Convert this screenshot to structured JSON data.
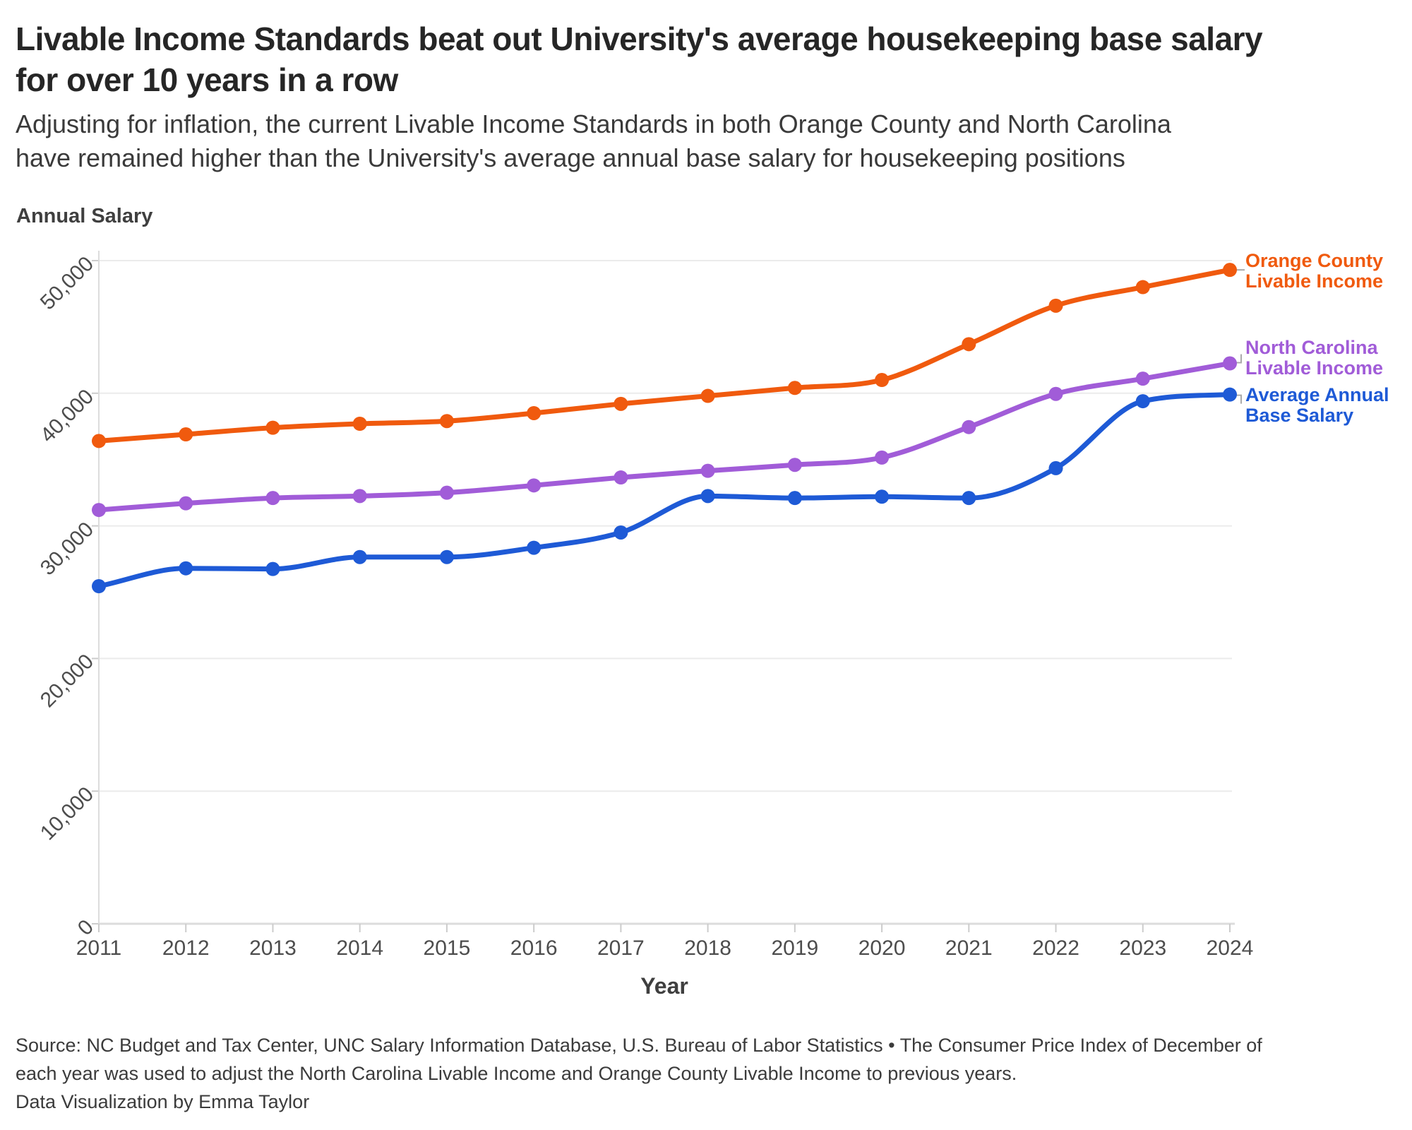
{
  "header": {
    "title_lines": [
      "Livable Income Standards beat out University's average housekeeping base salary",
      "for over 10 years in a row"
    ],
    "subtitle_lines": [
      "Adjusting for inflation, the current Livable Income Standards in both Orange County and North Carolina",
      "have remained higher than the University's average annual base salary for housekeeping positions"
    ]
  },
  "chart_data": {
    "type": "line",
    "title": "Livable Income Standards beat out University's average housekeeping base salary for over 10 years in a row",
    "ylabel": "Annual Salary",
    "xlabel": "Year",
    "ylim": [
      0,
      50000
    ],
    "grid": "horizontal",
    "legend_position": "right-of-line-ends",
    "x": [
      2011,
      2012,
      2013,
      2014,
      2015,
      2016,
      2017,
      2018,
      2019,
      2020,
      2021,
      2022,
      2023,
      2024
    ],
    "yticks": [
      {
        "value": 0,
        "label": "0"
      },
      {
        "value": 10000,
        "label": "10,000"
      },
      {
        "value": 20000,
        "label": "20,000"
      },
      {
        "value": 30000,
        "label": "30,000"
      },
      {
        "value": 40000,
        "label": "40,000"
      },
      {
        "value": 50000,
        "label": "50,000"
      }
    ],
    "series": [
      {
        "name": "Orange County Livable Income",
        "label_lines": [
          "Orange County",
          "Livable Income"
        ],
        "color": "#F05A0E",
        "values": [
          36400,
          36900,
          37400,
          37700,
          37900,
          38500,
          39200,
          39800,
          40400,
          41000,
          43700,
          46600,
          48000,
          49300
        ]
      },
      {
        "name": "North Carolina Livable Income",
        "label_lines": [
          "North Carolina",
          "Livable Income"
        ],
        "color": "#A15CD8",
        "values": [
          31200,
          31700,
          32100,
          32250,
          32500,
          33050,
          33650,
          34150,
          34600,
          35150,
          37450,
          39950,
          41100,
          42250
        ]
      },
      {
        "name": "Average Annual Base Salary",
        "label_lines": [
          "Average Annual",
          "Base Salary"
        ],
        "color": "#1E5AD6",
        "values": [
          25450,
          26800,
          26750,
          27650,
          27650,
          28350,
          29500,
          32250,
          32100,
          32200,
          32100,
          34350,
          39400,
          39900
        ]
      }
    ]
  },
  "footer": {
    "lines": [
      "Source: NC Budget and Tax Center, UNC Salary Information Database, U.S. Bureau of Labor Statistics • The Consumer Price Index of December of",
      "each year was used to adjust the North Carolina Livable Income and Orange County Livable Income to previous years.",
      "Data Visualization by Emma Taylor"
    ]
  },
  "colors": {
    "grid": "#ebebeb",
    "axis": "#dcdcdc",
    "tick": "#cccccc",
    "tick_text": "#4d4d4d",
    "connector": "#aaaaaa"
  }
}
